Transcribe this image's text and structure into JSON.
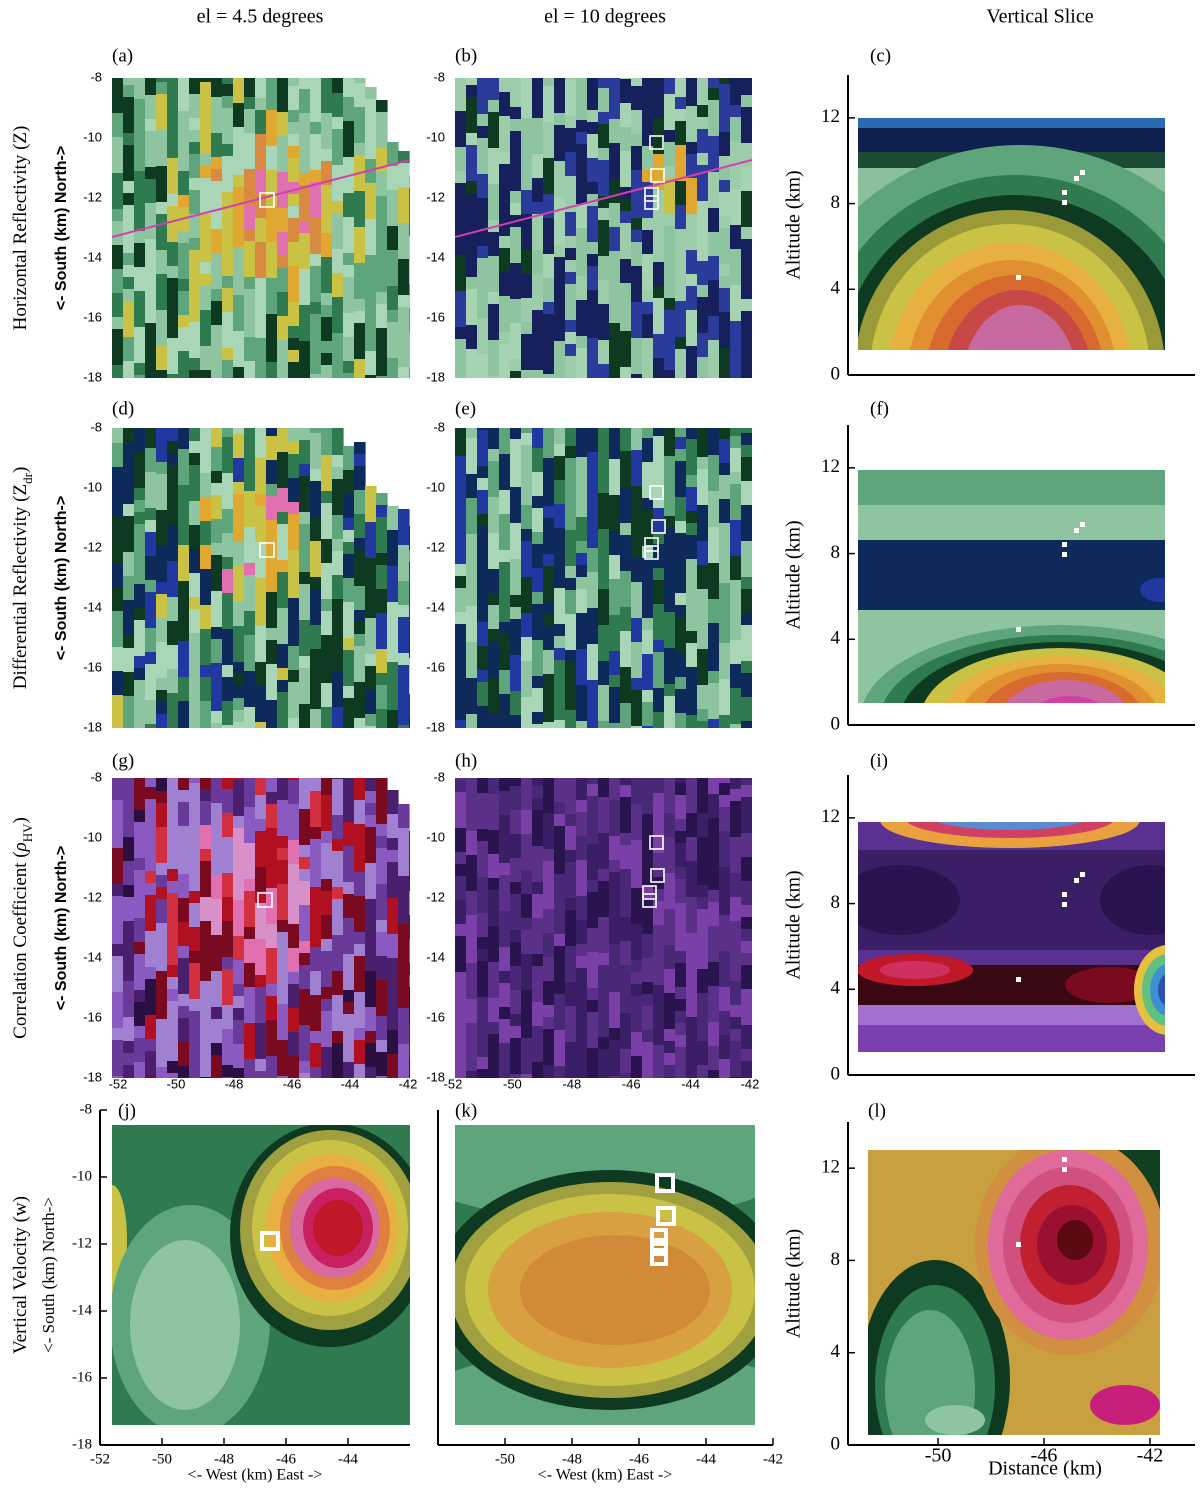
{
  "columns": [
    "el = 4.5 degrees",
    "el = 10 degrees",
    "Vertical Slice"
  ],
  "rows": [
    {
      "label": [
        {
          "text": "Horizontal Reflectivity (Z)"
        }
      ],
      "y_axis": "<- South (km) North->"
    },
    {
      "label": [
        {
          "text": "Differential Reflectivity (Z"
        },
        {
          "text": "dr",
          "sub": true
        },
        {
          "text": ")"
        }
      ],
      "y_axis": "<- South (km) North->"
    },
    {
      "label": [
        {
          "text": "Correlation Coefficient ("
        },
        {
          "text": "ρ",
          "italic": true
        },
        {
          "text": "HV",
          "sub": true
        },
        {
          "text": ")"
        }
      ],
      "y_axis": "<- South (km) North->"
    },
    {
      "label": [
        {
          "text": "Vertical Velocity (w)"
        }
      ],
      "y_axis": "<- South (km) North->"
    }
  ],
  "chart_data": [
    {
      "type": "radar",
      "label": "(a)",
      "xlim": [
        -52,
        -42
      ],
      "ylim": [
        -18,
        -8
      ],
      "yticks": [
        -8,
        -10,
        -12,
        -14,
        -16,
        -18
      ]
    },
    {
      "type": "radar",
      "label": "(b)",
      "xlim": [
        -52,
        -42
      ],
      "ylim": [
        -18,
        -8
      ],
      "yticks": [
        -8,
        -10,
        -12,
        -14,
        -16,
        -18
      ]
    },
    {
      "type": "contour",
      "label": "(c)",
      "xlim": [
        -53.4,
        -40.3
      ],
      "ylim": [
        0,
        14
      ],
      "yticks": [
        0,
        4,
        8,
        12
      ],
      "ylabel": "Altitude (km)"
    },
    {
      "type": "radar",
      "label": "(d)",
      "xlim": [
        -52,
        -42
      ],
      "ylim": [
        -18,
        -8
      ],
      "yticks": [
        -8,
        -10,
        -12,
        -14,
        -16,
        -18
      ]
    },
    {
      "type": "radar",
      "label": "(e)",
      "xlim": [
        -52,
        -42
      ],
      "ylim": [
        -18,
        -8
      ],
      "yticks": [
        -8,
        -10,
        -12,
        -14,
        -16,
        -18
      ]
    },
    {
      "type": "contour",
      "label": "(f)",
      "xlim": [
        -53.4,
        -40.3
      ],
      "ylim": [
        0,
        14
      ],
      "yticks": [
        0,
        4,
        8,
        12
      ],
      "ylabel": "Altitude (km)"
    },
    {
      "type": "radar",
      "label": "(g)",
      "xlim": [
        -52,
        -42
      ],
      "ylim": [
        -18,
        -8
      ],
      "yticks": [
        -8,
        -10,
        -12,
        -14,
        -16,
        -18
      ],
      "xticks": [
        -52,
        -50,
        -48,
        -46,
        -44,
        -42
      ]
    },
    {
      "type": "radar",
      "label": "(h)",
      "xlim": [
        -52,
        -42
      ],
      "ylim": [
        -18,
        -8
      ],
      "yticks": [
        -8,
        -10,
        -12,
        -14,
        -16,
        -18
      ],
      "xticks": [
        -52,
        -50,
        -48,
        -46,
        -44,
        -42
      ]
    },
    {
      "type": "contour",
      "label": "(i)",
      "xlim": [
        -53.4,
        -40.3
      ],
      "ylim": [
        0,
        14
      ],
      "yticks": [
        0,
        4,
        8,
        12
      ],
      "ylabel": "Altitude (km)"
    },
    {
      "type": "contour",
      "label": "(j)",
      "xlim": [
        -52,
        -42
      ],
      "ylim": [
        -18,
        -8
      ],
      "yticks": [
        -8,
        -10,
        -12,
        -14,
        -16,
        -18
      ],
      "xticks": [
        -52,
        -50,
        -48,
        -46,
        -44
      ],
      "xlabel": "<- West (km) East ->"
    },
    {
      "type": "contour",
      "label": "(k)",
      "xlim": [
        -52,
        -42
      ],
      "ylim": [
        -18,
        -8
      ],
      "xticks": [
        -50,
        -48,
        -46,
        -44,
        -42
      ],
      "xlabel": "<- West (km) East ->"
    },
    {
      "type": "contour",
      "label": "(l)",
      "xlim": [
        -53.4,
        -40.3
      ],
      "ylim": [
        0,
        14
      ],
      "yticks": [
        0,
        4,
        8,
        12
      ],
      "xticks": [
        -50,
        -46,
        -42
      ],
      "ylabel": "Altitude (km)",
      "xlabel": "Distance (km)"
    }
  ]
}
